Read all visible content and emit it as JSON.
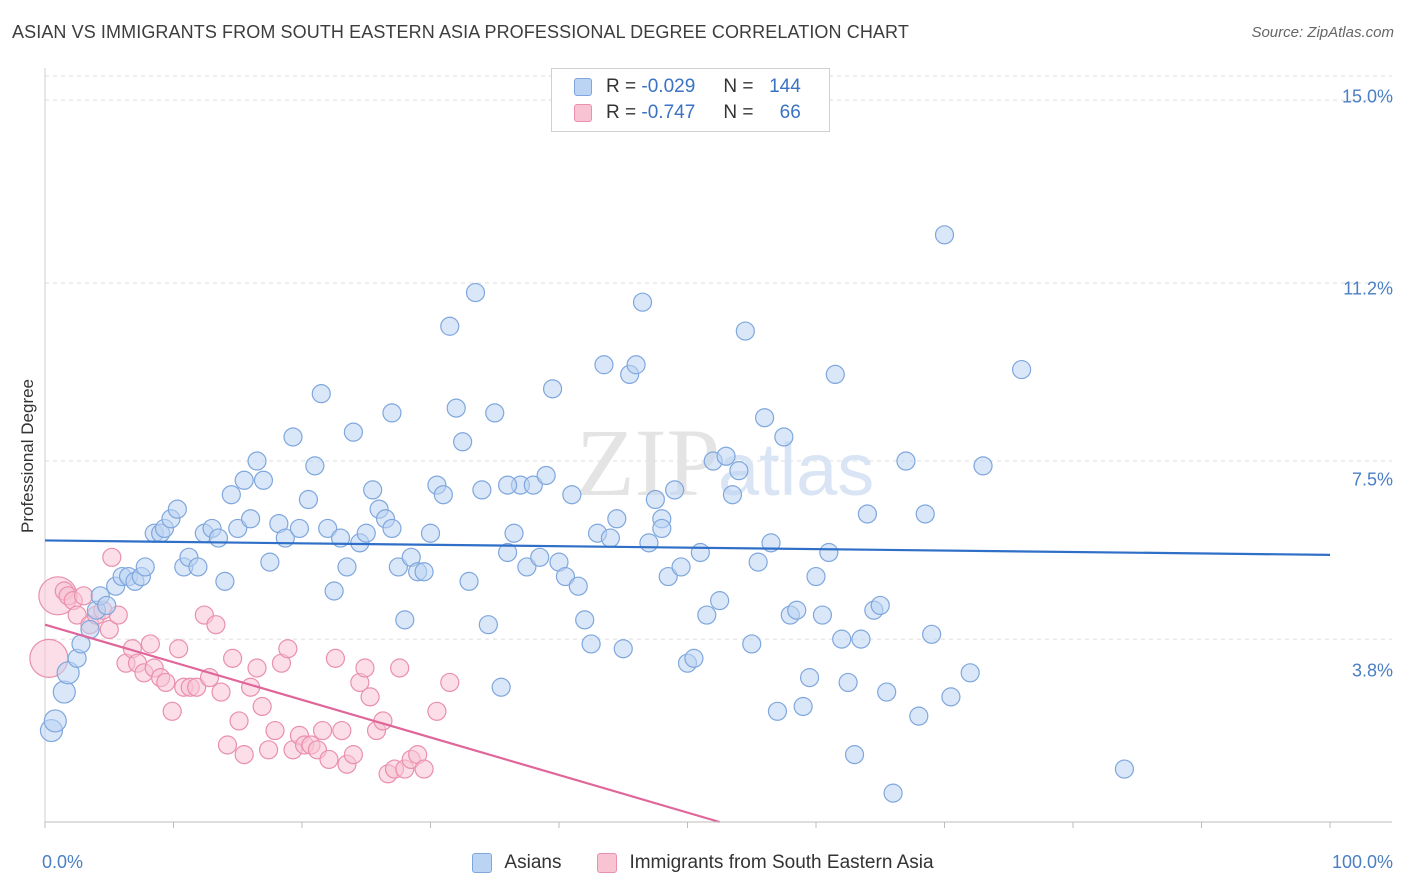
{
  "chart_data": {
    "type": "scatter",
    "title": "ASIAN VS IMMIGRANTS FROM SOUTH EASTERN ASIA PROFESSIONAL DEGREE CORRELATION CHART",
    "source": "Source: ZipAtlas.com",
    "xlabel": "",
    "ylabel": "Professional Degree",
    "xlim": [
      0,
      100
    ],
    "ylim": [
      0,
      15.5
    ],
    "x_tick_labels": [
      "0.0%",
      "100.0%"
    ],
    "y_ticks": [
      {
        "value": 3.8,
        "label": "3.8%"
      },
      {
        "value": 7.5,
        "label": "7.5%"
      },
      {
        "value": 11.2,
        "label": "11.2%"
      },
      {
        "value": 15.0,
        "label": "15.0%"
      }
    ],
    "watermark": "ZIPatlas",
    "legend": [
      {
        "r_label": "R =",
        "r_value": "-0.029",
        "n_label": "N =",
        "n_value": "144"
      },
      {
        "r_label": "R =",
        "r_value": "-0.747",
        "n_label": "N =",
        "n_value": "66"
      }
    ],
    "series": [
      {
        "name": "Asians",
        "color": "#7fa7dd",
        "fill": "#bcd4f3",
        "line_color": "#2f6fc7",
        "trend": {
          "x0": 0,
          "y0": 5.85,
          "x1": 100,
          "y1": 5.55
        },
        "points": [
          [
            0.5,
            1.9
          ],
          [
            0.8,
            2.1
          ],
          [
            1.5,
            2.7
          ],
          [
            1.8,
            3.1
          ],
          [
            2.5,
            3.4
          ],
          [
            2.8,
            3.7
          ],
          [
            3.5,
            4.0
          ],
          [
            4.0,
            4.4
          ],
          [
            4.3,
            4.7
          ],
          [
            4.8,
            4.5
          ],
          [
            5.5,
            4.9
          ],
          [
            6.0,
            5.1
          ],
          [
            6.5,
            5.1
          ],
          [
            7.0,
            5.0
          ],
          [
            7.5,
            5.1
          ],
          [
            7.8,
            5.3
          ],
          [
            8.5,
            6.0
          ],
          [
            9.0,
            6.0
          ],
          [
            9.3,
            6.1
          ],
          [
            9.8,
            6.3
          ],
          [
            10.3,
            6.5
          ],
          [
            10.8,
            5.3
          ],
          [
            11.2,
            5.5
          ],
          [
            11.9,
            5.3
          ],
          [
            12.4,
            6.0
          ],
          [
            13.0,
            6.1
          ],
          [
            13.5,
            5.9
          ],
          [
            14.0,
            5.0
          ],
          [
            14.5,
            6.8
          ],
          [
            15.0,
            6.1
          ],
          [
            15.5,
            7.1
          ],
          [
            16.0,
            6.3
          ],
          [
            16.5,
            7.5
          ],
          [
            17.0,
            7.1
          ],
          [
            17.5,
            5.4
          ],
          [
            18.2,
            6.2
          ],
          [
            18.7,
            5.9
          ],
          [
            19.3,
            8.0
          ],
          [
            19.8,
            6.1
          ],
          [
            20.5,
            6.7
          ],
          [
            21.0,
            7.4
          ],
          [
            21.5,
            8.9
          ],
          [
            22.0,
            6.1
          ],
          [
            22.5,
            4.8
          ],
          [
            23.0,
            5.9
          ],
          [
            23.5,
            5.3
          ],
          [
            24.0,
            8.1
          ],
          [
            24.5,
            5.8
          ],
          [
            25.0,
            6.0
          ],
          [
            25.5,
            6.9
          ],
          [
            26.0,
            6.5
          ],
          [
            26.5,
            6.3
          ],
          [
            27.0,
            8.5
          ],
          [
            27.5,
            5.3
          ],
          [
            28.0,
            4.2
          ],
          [
            28.5,
            5.5
          ],
          [
            29.0,
            5.2
          ],
          [
            29.5,
            5.2
          ],
          [
            30.0,
            6.0
          ],
          [
            30.5,
            7.0
          ],
          [
            31.0,
            6.8
          ],
          [
            31.5,
            10.3
          ],
          [
            32.0,
            8.6
          ],
          [
            32.5,
            7.9
          ],
          [
            33.0,
            5.0
          ],
          [
            33.5,
            11.0
          ],
          [
            34.0,
            6.9
          ],
          [
            34.5,
            4.1
          ],
          [
            35.0,
            8.5
          ],
          [
            35.5,
            2.8
          ],
          [
            36.0,
            5.6
          ],
          [
            36.5,
            6.0
          ],
          [
            37.0,
            7.0
          ],
          [
            37.5,
            5.3
          ],
          [
            38.0,
            7.0
          ],
          [
            38.5,
            5.5
          ],
          [
            39.0,
            7.2
          ],
          [
            39.5,
            9.0
          ],
          [
            40.0,
            5.4
          ],
          [
            40.5,
            5.1
          ],
          [
            41.0,
            6.8
          ],
          [
            41.5,
            4.9
          ],
          [
            42.0,
            4.2
          ],
          [
            42.5,
            3.7
          ],
          [
            43.0,
            6.0
          ],
          [
            43.5,
            9.5
          ],
          [
            44.0,
            5.9
          ],
          [
            44.5,
            6.3
          ],
          [
            45.0,
            3.6
          ],
          [
            45.5,
            9.3
          ],
          [
            46.0,
            9.5
          ],
          [
            46.5,
            10.8
          ],
          [
            47.0,
            5.8
          ],
          [
            47.5,
            6.7
          ],
          [
            48.0,
            6.3
          ],
          [
            48.5,
            5.1
          ],
          [
            49.0,
            6.9
          ],
          [
            49.5,
            5.3
          ],
          [
            50.0,
            3.3
          ],
          [
            50.5,
            3.4
          ],
          [
            51.0,
            5.6
          ],
          [
            51.5,
            4.3
          ],
          [
            52.0,
            7.5
          ],
          [
            52.5,
            4.6
          ],
          [
            53.0,
            7.6
          ],
          [
            53.5,
            6.8
          ],
          [
            54.0,
            7.3
          ],
          [
            54.5,
            10.2
          ],
          [
            55.0,
            3.7
          ],
          [
            55.5,
            5.4
          ],
          [
            56.0,
            8.4
          ],
          [
            56.5,
            5.8
          ],
          [
            57.0,
            2.3
          ],
          [
            57.5,
            8.0
          ],
          [
            58.0,
            4.3
          ],
          [
            58.5,
            4.4
          ],
          [
            59.0,
            2.4
          ],
          [
            59.5,
            3.0
          ],
          [
            60.0,
            5.1
          ],
          [
            60.5,
            4.3
          ],
          [
            61.0,
            5.6
          ],
          [
            61.5,
            9.3
          ],
          [
            62.0,
            3.8
          ],
          [
            62.5,
            2.9
          ],
          [
            63.0,
            1.4
          ],
          [
            63.5,
            3.8
          ],
          [
            64.0,
            6.4
          ],
          [
            64.5,
            4.4
          ],
          [
            65.0,
            4.5
          ],
          [
            65.5,
            2.7
          ],
          [
            66.0,
            0.6
          ],
          [
            67.0,
            7.5
          ],
          [
            68.0,
            2.2
          ],
          [
            68.5,
            6.4
          ],
          [
            69.0,
            3.9
          ],
          [
            70.5,
            2.6
          ],
          [
            72.0,
            3.1
          ],
          [
            73.0,
            7.4
          ],
          [
            76.0,
            9.4
          ],
          [
            84.0,
            1.1
          ],
          [
            70.0,
            12.2
          ],
          [
            48.0,
            6.1
          ],
          [
            36.0,
            7.0
          ],
          [
            27.0,
            6.1
          ]
        ]
      },
      {
        "name": "Immigrants from South Eastern Asia",
        "color": "#ea8fae",
        "fill": "#f8c3d3",
        "line_color": "#e0669a",
        "trend": {
          "x0": 0,
          "y0": 4.1,
          "x1": 52.5,
          "y1": 0
        },
        "points": [
          [
            0.3,
            3.4
          ],
          [
            1.0,
            4.7
          ],
          [
            1.5,
            4.8
          ],
          [
            1.8,
            4.7
          ],
          [
            2.2,
            4.6
          ],
          [
            2.5,
            4.3
          ],
          [
            3.0,
            4.7
          ],
          [
            3.5,
            4.1
          ],
          [
            4.0,
            4.3
          ],
          [
            4.5,
            4.4
          ],
          [
            5.0,
            4.0
          ],
          [
            5.2,
            5.5
          ],
          [
            5.7,
            4.3
          ],
          [
            6.3,
            3.3
          ],
          [
            6.8,
            3.6
          ],
          [
            7.2,
            3.3
          ],
          [
            7.7,
            3.1
          ],
          [
            8.2,
            3.7
          ],
          [
            8.5,
            3.2
          ],
          [
            9.0,
            3.0
          ],
          [
            9.4,
            2.9
          ],
          [
            9.9,
            2.3
          ],
          [
            10.4,
            3.6
          ],
          [
            10.8,
            2.8
          ],
          [
            11.3,
            2.8
          ],
          [
            11.8,
            2.8
          ],
          [
            12.4,
            4.3
          ],
          [
            12.8,
            3.0
          ],
          [
            13.3,
            4.1
          ],
          [
            13.7,
            2.7
          ],
          [
            14.2,
            1.6
          ],
          [
            14.6,
            3.4
          ],
          [
            15.1,
            2.1
          ],
          [
            15.5,
            1.4
          ],
          [
            16.0,
            2.8
          ],
          [
            16.5,
            3.2
          ],
          [
            16.9,
            2.4
          ],
          [
            17.4,
            1.5
          ],
          [
            17.9,
            1.9
          ],
          [
            18.4,
            3.3
          ],
          [
            18.9,
            3.6
          ],
          [
            19.3,
            1.5
          ],
          [
            19.8,
            1.8
          ],
          [
            20.2,
            1.6
          ],
          [
            20.7,
            1.6
          ],
          [
            21.2,
            1.5
          ],
          [
            21.6,
            1.9
          ],
          [
            22.1,
            1.3
          ],
          [
            22.6,
            3.4
          ],
          [
            23.1,
            1.9
          ],
          [
            23.5,
            1.2
          ],
          [
            24.0,
            1.4
          ],
          [
            24.5,
            2.9
          ],
          [
            24.9,
            3.2
          ],
          [
            25.3,
            2.6
          ],
          [
            25.8,
            1.9
          ],
          [
            26.3,
            2.1
          ],
          [
            26.7,
            1.0
          ],
          [
            27.2,
            1.1
          ],
          [
            27.6,
            3.2
          ],
          [
            28.0,
            1.1
          ],
          [
            28.5,
            1.3
          ],
          [
            29.0,
            1.4
          ],
          [
            29.5,
            1.1
          ],
          [
            30.5,
            2.3
          ],
          [
            31.5,
            2.9
          ]
        ]
      }
    ]
  }
}
